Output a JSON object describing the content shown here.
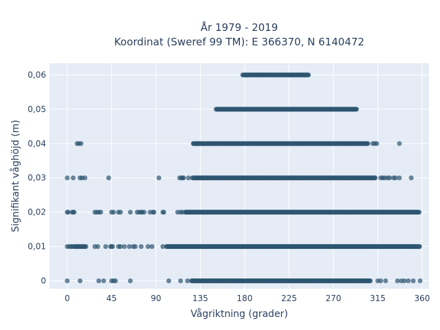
{
  "chart_data": {
    "type": "scatter",
    "title_line1": "År 1979 - 2019",
    "title_line2": "Koordinat (Sweref 99 TM): E 366370, N 6140472",
    "xlabel": "Vågriktning (grader)",
    "ylabel": "Signifikant våghöjd (m)",
    "xlim": [
      -18,
      367
    ],
    "ylim": [
      -0.0023,
      0.0634
    ],
    "x_ticks": [
      0,
      45,
      90,
      135,
      180,
      225,
      270,
      315,
      360
    ],
    "x_tick_labels": [
      "0",
      "45",
      "90",
      "135",
      "180",
      "225",
      "270",
      "315",
      "360"
    ],
    "y_ticks": [
      0,
      0.01,
      0.02,
      0.03,
      0.04,
      0.05,
      0.06
    ],
    "y_tick_labels": [
      "0",
      "0,01",
      "0,02",
      "0,03",
      "0,04",
      "0,05",
      "0,06"
    ],
    "grid": true,
    "plot_background": "#e5ecf6",
    "marker_color": "#2e5570",
    "marker_opacity": 0.7,
    "series": [
      {
        "y": 0,
        "dense_range": [
          126,
          308
        ],
        "points": [
          0,
          13,
          32,
          37,
          45,
          47,
          49,
          64,
          103,
          115,
          122,
          128,
          315,
          318,
          323,
          335,
          339,
          342,
          346,
          351,
          358
        ]
      },
      {
        "y": 0.01,
        "dense_range": [
          101,
          358
        ],
        "points": [
          0,
          2,
          4,
          5,
          7,
          8,
          9,
          10,
          11,
          12,
          13,
          14,
          15,
          16,
          17,
          18,
          19,
          28,
          31,
          39,
          44,
          45,
          46,
          52,
          54,
          58,
          63,
          67,
          69,
          75,
          82,
          86,
          97,
          101
        ]
      },
      {
        "y": 0.02,
        "dense_range": [
          120,
          357
        ],
        "points": [
          0,
          1,
          5,
          6,
          7,
          28,
          30,
          32,
          34,
          45,
          47,
          52,
          54,
          64,
          71,
          73,
          75,
          76,
          78,
          84,
          87,
          88,
          97,
          98,
          112,
          115,
          117,
          120
        ]
      },
      {
        "y": 0.03,
        "dense_range": [
          128,
          313
        ],
        "points": [
          0,
          6,
          13,
          15,
          18,
          42,
          93,
          114,
          116,
          117,
          118,
          123,
          127,
          318,
          320,
          322,
          325,
          327,
          331,
          333,
          337,
          349
        ]
      },
      {
        "y": 0.04,
        "dense_range": [
          128,
          305
        ],
        "points": [
          10,
          12,
          14,
          128,
          131,
          133,
          310,
          312,
          314,
          337
        ]
      },
      {
        "y": 0.05,
        "dense_range": [
          151,
          294
        ],
        "points": []
      },
      {
        "y": 0.06,
        "dense_range": [
          178,
          245
        ],
        "points": []
      }
    ]
  }
}
